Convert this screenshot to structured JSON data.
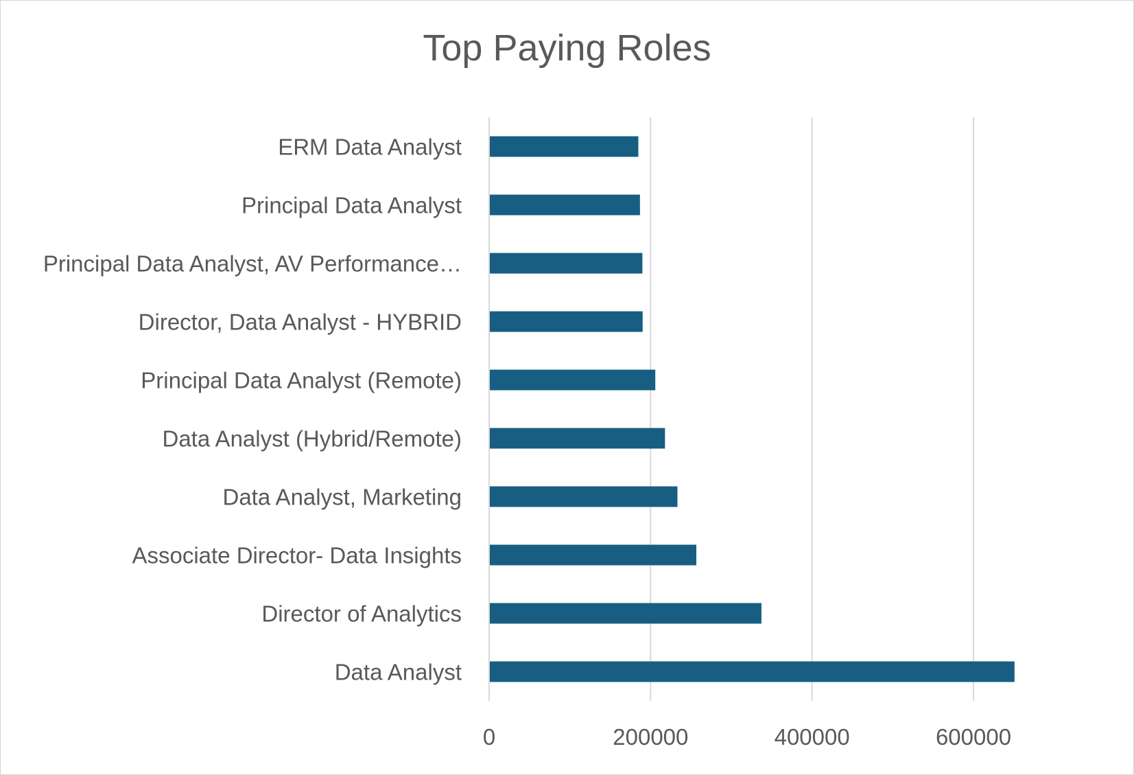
{
  "chart_data": {
    "type": "bar",
    "orientation": "horizontal",
    "title": "Top Paying Roles",
    "xlabel": "",
    "ylabel": "",
    "categories": [
      "ERM Data Analyst",
      "Principal Data Analyst",
      "Principal Data Analyst, AV Performance…",
      "Director, Data Analyst - HYBRID",
      "Principal Data Analyst (Remote)",
      "Data Analyst (Hybrid/Remote)",
      "Data Analyst, Marketing",
      "Associate Director- Data Insights",
      "Director of Analytics",
      "Data Analyst"
    ],
    "values": [
      184000,
      186000,
      189000,
      189309,
      205000,
      217000,
      232423,
      255830,
      336500,
      650000
    ],
    "xlim": [
      0,
      650000
    ],
    "xticks": [
      "0",
      "200000",
      "400000",
      "600000"
    ],
    "xtick_values": [
      0,
      200000,
      400000,
      600000
    ],
    "grid": "vertical",
    "legend": "none",
    "bar_color": "#175E82",
    "gridline_color": "#d9d9d9"
  }
}
